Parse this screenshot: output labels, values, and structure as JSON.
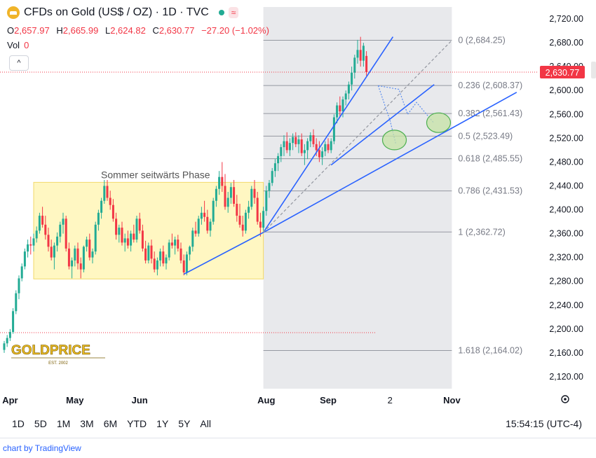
{
  "header": {
    "title": "CFDs on Gold (US$ / OZ) · 1D · TVC",
    "status_icon": "green-dot-icon",
    "wave_icon": "≈"
  },
  "ohlc": {
    "o_label": "O",
    "o": "2,657.97",
    "h_label": "H",
    "h": "2,665.99",
    "l_label": "L",
    "l": "2,624.82",
    "c_label": "C",
    "c": "2,630.77",
    "change": "−27.20 (−1.02%)"
  },
  "volume": {
    "label": "Vol",
    "value": "0"
  },
  "collapse_icon": "^",
  "colors": {
    "up": "#22ab94",
    "down": "#f23645",
    "trend": "#2962ff",
    "range_box": "#fff7c2",
    "fib_zone": "#e8e9ec"
  },
  "chart_data": {
    "type": "candlestick",
    "y_axis": {
      "min": 2100,
      "max": 2740,
      "ticks": [
        "2,720.00",
        "2,680.00",
        "2,640.00",
        "2,600.00",
        "2,560.00",
        "2,520.00",
        "2,480.00",
        "2,440.00",
        "2,400.00",
        "2,360.00",
        "2,320.00",
        "2,280.00",
        "2,240.00",
        "2,200.00",
        "2,160.00",
        "2,120.00"
      ]
    },
    "x_axis": {
      "labels": [
        {
          "text": "Apr",
          "bar": 2
        },
        {
          "text": "May",
          "bar": 24
        },
        {
          "text": "Jun",
          "bar": 46
        },
        {
          "text": "Aug",
          "bar": 89
        },
        {
          "text": "Sep",
          "bar": 110
        },
        {
          "text": "2",
          "bar": 131
        },
        {
          "text": "Nov",
          "bar": 152
        }
      ]
    },
    "last_price": {
      "value": 2630.77,
      "label": "2,630.77"
    },
    "candles": [
      [
        2165,
        2180,
        2160,
        2176
      ],
      [
        2176,
        2190,
        2170,
        2185
      ],
      [
        2185,
        2200,
        2180,
        2195
      ],
      [
        2195,
        2235,
        2192,
        2230
      ],
      [
        2230,
        2265,
        2225,
        2260
      ],
      [
        2260,
        2290,
        2250,
        2285
      ],
      [
        2285,
        2310,
        2280,
        2305
      ],
      [
        2305,
        2335,
        2300,
        2330
      ],
      [
        2330,
        2350,
        2320,
        2342
      ],
      [
        2342,
        2355,
        2325,
        2340
      ],
      [
        2340,
        2360,
        2330,
        2352
      ],
      [
        2352,
        2372,
        2345,
        2365
      ],
      [
        2365,
        2395,
        2360,
        2390
      ],
      [
        2390,
        2405,
        2370,
        2375
      ],
      [
        2375,
        2390,
        2350,
        2358
      ],
      [
        2358,
        2370,
        2330,
        2338
      ],
      [
        2338,
        2350,
        2315,
        2320
      ],
      [
        2320,
        2345,
        2300,
        2340
      ],
      [
        2340,
        2362,
        2330,
        2355
      ],
      [
        2355,
        2380,
        2345,
        2375
      ],
      [
        2375,
        2395,
        2360,
        2385
      ],
      [
        2385,
        2390,
        2330,
        2335
      ],
      [
        2335,
        2345,
        2300,
        2305
      ],
      [
        2305,
        2320,
        2285,
        2315
      ],
      [
        2315,
        2340,
        2305,
        2335
      ],
      [
        2335,
        2345,
        2300,
        2310
      ],
      [
        2310,
        2320,
        2285,
        2300
      ],
      [
        2300,
        2340,
        2295,
        2338
      ],
      [
        2338,
        2355,
        2330,
        2350
      ],
      [
        2350,
        2360,
        2315,
        2320
      ],
      [
        2320,
        2335,
        2310,
        2330
      ],
      [
        2330,
        2380,
        2325,
        2375
      ],
      [
        2375,
        2400,
        2365,
        2395
      ],
      [
        2395,
        2420,
        2385,
        2415
      ],
      [
        2415,
        2450,
        2410,
        2440
      ],
      [
        2440,
        2450,
        2415,
        2420
      ],
      [
        2420,
        2432,
        2400,
        2408
      ],
      [
        2408,
        2418,
        2380,
        2385
      ],
      [
        2385,
        2395,
        2350,
        2358
      ],
      [
        2358,
        2375,
        2345,
        2370
      ],
      [
        2370,
        2380,
        2340,
        2345
      ],
      [
        2345,
        2360,
        2330,
        2352
      ],
      [
        2352,
        2365,
        2335,
        2340
      ],
      [
        2340,
        2365,
        2330,
        2360
      ],
      [
        2360,
        2375,
        2345,
        2350
      ],
      [
        2350,
        2390,
        2345,
        2385
      ],
      [
        2385,
        2395,
        2360,
        2365
      ],
      [
        2365,
        2375,
        2330,
        2335
      ],
      [
        2335,
        2348,
        2310,
        2315
      ],
      [
        2315,
        2345,
        2310,
        2340
      ],
      [
        2340,
        2350,
        2310,
        2318
      ],
      [
        2318,
        2330,
        2295,
        2300
      ],
      [
        2300,
        2320,
        2290,
        2315
      ],
      [
        2315,
        2335,
        2305,
        2330
      ],
      [
        2330,
        2340,
        2305,
        2310
      ],
      [
        2310,
        2325,
        2300,
        2320
      ],
      [
        2320,
        2350,
        2315,
        2345
      ],
      [
        2345,
        2360,
        2335,
        2340
      ],
      [
        2340,
        2355,
        2325,
        2350
      ],
      [
        2350,
        2358,
        2330,
        2335
      ],
      [
        2335,
        2345,
        2310,
        2315
      ],
      [
        2315,
        2325,
        2290,
        2295
      ],
      [
        2295,
        2330,
        2290,
        2325
      ],
      [
        2325,
        2340,
        2315,
        2338
      ],
      [
        2338,
        2370,
        2330,
        2365
      ],
      [
        2365,
        2380,
        2355,
        2360
      ],
      [
        2360,
        2390,
        2355,
        2385
      ],
      [
        2385,
        2405,
        2375,
        2395
      ],
      [
        2395,
        2415,
        2380,
        2388
      ],
      [
        2388,
        2400,
        2360,
        2365
      ],
      [
        2365,
        2385,
        2355,
        2380
      ],
      [
        2380,
        2420,
        2375,
        2415
      ],
      [
        2415,
        2440,
        2405,
        2435
      ],
      [
        2435,
        2465,
        2425,
        2455
      ],
      [
        2455,
        2480,
        2430,
        2440
      ],
      [
        2440,
        2460,
        2400,
        2405
      ],
      [
        2405,
        2430,
        2395,
        2420
      ],
      [
        2420,
        2445,
        2410,
        2438
      ],
      [
        2438,
        2450,
        2405,
        2410
      ],
      [
        2410,
        2425,
        2380,
        2390
      ],
      [
        2390,
        2410,
        2370,
        2375
      ],
      [
        2375,
        2390,
        2355,
        2365
      ],
      [
        2365,
        2400,
        2360,
        2395
      ],
      [
        2395,
        2415,
        2385,
        2405
      ],
      [
        2405,
        2440,
        2400,
        2435
      ],
      [
        2435,
        2450,
        2410,
        2420
      ],
      [
        2420,
        2430,
        2375,
        2380
      ],
      [
        2380,
        2395,
        2355,
        2370
      ],
      [
        2370,
        2405,
        2365,
        2398
      ],
      [
        2398,
        2440,
        2390,
        2432
      ],
      [
        2432,
        2450,
        2420,
        2445
      ],
      [
        2445,
        2470,
        2440,
        2465
      ],
      [
        2465,
        2485,
        2455,
        2478
      ],
      [
        2478,
        2495,
        2465,
        2490
      ],
      [
        2490,
        2510,
        2480,
        2505
      ],
      [
        2505,
        2525,
        2490,
        2515
      ],
      [
        2515,
        2530,
        2495,
        2500
      ],
      [
        2500,
        2520,
        2490,
        2512
      ],
      [
        2512,
        2528,
        2500,
        2522
      ],
      [
        2522,
        2530,
        2505,
        2510
      ],
      [
        2510,
        2525,
        2495,
        2518
      ],
      [
        2518,
        2528,
        2490,
        2495
      ],
      [
        2495,
        2510,
        2475,
        2500
      ],
      [
        2500,
        2520,
        2485,
        2515
      ],
      [
        2515,
        2530,
        2505,
        2525
      ],
      [
        2525,
        2535,
        2505,
        2510
      ],
      [
        2510,
        2520,
        2490,
        2500
      ],
      [
        2500,
        2515,
        2480,
        2488
      ],
      [
        2488,
        2505,
        2475,
        2498
      ],
      [
        2498,
        2515,
        2490,
        2510
      ],
      [
        2510,
        2520,
        2495,
        2500
      ],
      [
        2500,
        2520,
        2495,
        2515
      ],
      [
        2515,
        2560,
        2510,
        2555
      ],
      [
        2555,
        2580,
        2545,
        2575
      ],
      [
        2575,
        2590,
        2555,
        2565
      ],
      [
        2565,
        2590,
        2555,
        2585
      ],
      [
        2585,
        2600,
        2575,
        2595
      ],
      [
        2595,
        2615,
        2585,
        2610
      ],
      [
        2610,
        2640,
        2600,
        2630
      ],
      [
        2630,
        2660,
        2620,
        2655
      ],
      [
        2655,
        2685,
        2645,
        2668
      ],
      [
        2668,
        2690,
        2640,
        2650
      ],
      [
        2650,
        2680,
        2640,
        2675
      ],
      [
        2657.97,
        2665.99,
        2624.82,
        2630.77
      ]
    ],
    "range_box": {
      "label": "Sommer seitwärts Phase",
      "start_bar": 10,
      "end_bar": 88,
      "top": 2446,
      "bottom": 2284
    },
    "fib_zone": {
      "start_bar": 88,
      "end_bar": 152,
      "top": 2684.25,
      "bottom": 2362.72
    },
    "fib_levels": [
      {
        "label": "0 (2,684.25)",
        "price": 2684.25
      },
      {
        "label": "0.236 (2,608.37)",
        "price": 2608.37
      },
      {
        "label": "0.382 (2,561.43)",
        "price": 2561.43
      },
      {
        "label": "0.5 (2,523.49)",
        "price": 2523.49
      },
      {
        "label": "0.618 (2,485.55)",
        "price": 2485.55
      },
      {
        "label": "0.786 (2,431.53)",
        "price": 2431.53
      },
      {
        "label": "1 (2,362.72)",
        "price": 2362.72
      },
      {
        "label": "1.618 (2,164.02)",
        "price": 2164.02
      }
    ],
    "extra_dotted_level": 2194,
    "trendlines": [
      {
        "from": [
          61,
          2292
        ],
        "to": [
          88,
          2362
        ]
      },
      {
        "from": [
          88,
          2362
        ],
        "to": [
          174,
          2597
        ]
      },
      {
        "from": [
          88,
          2362
        ],
        "to": [
          132,
          2690
        ]
      },
      {
        "from": [
          111,
          2475
        ],
        "to": [
          146,
          2610
        ]
      }
    ],
    "dashed_line": {
      "from": [
        88,
        2362
      ],
      "to": [
        152,
        2684
      ]
    },
    "ellipses": [
      {
        "bar": 132.5,
        "price": 2517
      },
      {
        "bar": 147.5,
        "price": 2546
      }
    ],
    "projection_paths": [
      {
        "points": [
          [
            127,
            2608
          ],
          [
            134,
            2602
          ],
          [
            137,
            2560
          ],
          [
            140,
            2580
          ],
          [
            146,
            2545
          ]
        ]
      },
      {
        "points": [
          [
            127,
            2608
          ],
          [
            131,
            2550
          ],
          [
            133,
            2510
          ]
        ]
      }
    ]
  },
  "ranges": [
    "1D",
    "5D",
    "1M",
    "3M",
    "6M",
    "YTD",
    "1Y",
    "5Y",
    "All"
  ],
  "clock": "15:54:15 (UTC-4)",
  "credit": {
    "text": "chart by TradingView"
  },
  "logo": {
    "text": "GOLDPRICE",
    "sub": "EST. 2002"
  },
  "settings_icon": "gear-icon"
}
